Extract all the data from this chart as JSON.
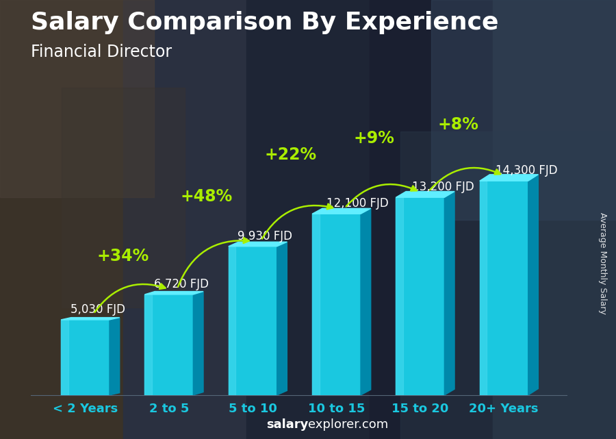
{
  "title": "Salary Comparison By Experience",
  "subtitle": "Financial Director",
  "categories": [
    "< 2 Years",
    "2 to 5",
    "5 to 10",
    "10 to 15",
    "15 to 20",
    "20+ Years"
  ],
  "values": [
    5030,
    6720,
    9930,
    12100,
    13200,
    14300
  ],
  "value_labels": [
    "5,030 FJD",
    "6,720 FJD",
    "9,930 FJD",
    "12,100 FJD",
    "13,200 FJD",
    "14,300 FJD"
  ],
  "pct_labels": [
    "+34%",
    "+48%",
    "+22%",
    "+9%",
    "+8%"
  ],
  "bar_color_main": "#1ac8e0",
  "bar_color_light": "#4adcf0",
  "bar_color_dark_side": "#0088aa",
  "bar_color_top": "#60eeff",
  "bg_color": "#1c2a3a",
  "title_color": "#ffffff",
  "subtitle_color": "#ffffff",
  "value_label_color": "#ffffff",
  "pct_label_color": "#aaee00",
  "arrow_color": "#aaee00",
  "ylabel": "Average Monthly Salary",
  "footer_salary": "salary",
  "footer_rest": "explorer.com",
  "ymax": 17000,
  "title_fontsize": 26,
  "subtitle_fontsize": 17,
  "value_fontsize": 12,
  "pct_fontsize": 17,
  "cat_fontsize": 13,
  "footer_fontsize": 13
}
